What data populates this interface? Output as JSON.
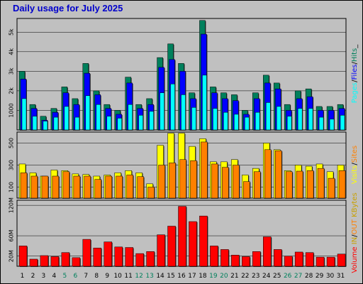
{
  "title": "Daily usage for July 2025",
  "colors": {
    "hits": "#00805c",
    "files": "#0000ff",
    "pages": "#00ffff",
    "visits": "#ffff00",
    "sites": "#ff8000",
    "kbin": "#ff8000",
    "kbout": "#ff8000",
    "volume": "#ff0000",
    "plot_bg": "#c0c0c0"
  },
  "chart_data": [
    {
      "type": "bar",
      "title": "Daily usage for July 2025",
      "ylabel_parts": [
        "Pages",
        "/",
        "Files",
        "/",
        "Hits",
        "_"
      ],
      "yticks": [
        "1000",
        "2k",
        "3k",
        "4k",
        "5k"
      ],
      "ylim": [
        0,
        5700
      ],
      "categories": [
        "1",
        "2",
        "3",
        "4",
        "5",
        "6",
        "7",
        "8",
        "9",
        "10",
        "11",
        "12",
        "13",
        "14",
        "15",
        "16",
        "17",
        "18",
        "19",
        "20",
        "21",
        "22",
        "23",
        "24",
        "25",
        "26",
        "27",
        "28",
        "29",
        "30",
        "31"
      ],
      "series": [
        {
          "name": "Hits",
          "color_key": "hits",
          "values": [
            3000,
            1300,
            700,
            1100,
            2200,
            1600,
            3400,
            2000,
            1300,
            1000,
            2700,
            1300,
            1600,
            3700,
            4400,
            3400,
            1900,
            5600,
            2200,
            1900,
            1800,
            1000,
            1900,
            2800,
            2400,
            1300,
            2000,
            2100,
            1200,
            1200,
            1300
          ]
        },
        {
          "name": "Files",
          "color_key": "files",
          "values": [
            2600,
            1100,
            500,
            900,
            1900,
            1300,
            2900,
            1800,
            1100,
            800,
            2400,
            1100,
            1300,
            3200,
            3600,
            3000,
            1600,
            4900,
            1900,
            1600,
            1500,
            800,
            1600,
            2400,
            2100,
            1000,
            1600,
            1700,
            1000,
            1000,
            1100
          ]
        },
        {
          "name": "Pages",
          "color_key": "pages",
          "values": [
            1600,
            700,
            450,
            650,
            1200,
            650,
            1750,
            1300,
            700,
            600,
            1300,
            750,
            950,
            1900,
            2350,
            1800,
            1150,
            2800,
            1100,
            900,
            800,
            650,
            900,
            1400,
            1200,
            700,
            1100,
            1100,
            650,
            550,
            750
          ]
        }
      ]
    },
    {
      "type": "bar",
      "ylabel_parts": [
        "Visits",
        "/",
        "Sites"
      ],
      "yticks": [
        "100",
        "300",
        "500"
      ],
      "ylim": [
        0,
        600
      ],
      "categories": [
        "1",
        "2",
        "3",
        "4",
        "5",
        "6",
        "7",
        "8",
        "9",
        "10",
        "11",
        "12",
        "13",
        "14",
        "15",
        "16",
        "17",
        "18",
        "19",
        "20",
        "21",
        "22",
        "23",
        "24",
        "25",
        "26",
        "27",
        "28",
        "29",
        "30",
        "31"
      ],
      "series": [
        {
          "name": "Visits",
          "color_key": "visits",
          "values": [
            310,
            230,
            200,
            255,
            250,
            220,
            215,
            200,
            210,
            230,
            250,
            230,
            130,
            480,
            590,
            590,
            470,
            540,
            330,
            330,
            350,
            210,
            270,
            500,
            440,
            250,
            300,
            290,
            310,
            240,
            300
          ]
        },
        {
          "name": "Sites",
          "color_key": "sites",
          "values": [
            230,
            200,
            200,
            200,
            240,
            200,
            200,
            170,
            200,
            200,
            210,
            195,
            100,
            300,
            320,
            350,
            340,
            510,
            310,
            280,
            300,
            150,
            240,
            440,
            430,
            240,
            245,
            250,
            270,
            180,
            250
          ]
        }
      ]
    },
    {
      "type": "bar",
      "ylabel_parts": [
        "Volume",
        " ",
        "IN",
        "/",
        "OUT",
        " ",
        "KBytes"
      ],
      "yticks": [
        "20M",
        "60M",
        "120M"
      ],
      "ylim": [
        0,
        130000
      ],
      "categories": [
        "1",
        "2",
        "3",
        "4",
        "5",
        "6",
        "7",
        "8",
        "9",
        "10",
        "11",
        "12",
        "13",
        "14",
        "15",
        "16",
        "17",
        "18",
        "19",
        "20",
        "21",
        "22",
        "23",
        "24",
        "25",
        "26",
        "27",
        "28",
        "29",
        "30",
        "31"
      ],
      "series": [
        {
          "name": "Volume",
          "color_key": "volume",
          "values": [
            40000,
            14000,
            21000,
            19000,
            27000,
            17000,
            53000,
            36000,
            48000,
            38000,
            37000,
            25000,
            29000,
            62000,
            79000,
            118000,
            88000,
            99000,
            40000,
            33000,
            22000,
            19000,
            29000,
            58000,
            33000,
            20000,
            28000,
            27000,
            18000,
            18000,
            24000
          ]
        }
      ]
    }
  ],
  "weekend_days": [
    "5",
    "6",
    "12",
    "13",
    "19",
    "20",
    "26",
    "27"
  ]
}
